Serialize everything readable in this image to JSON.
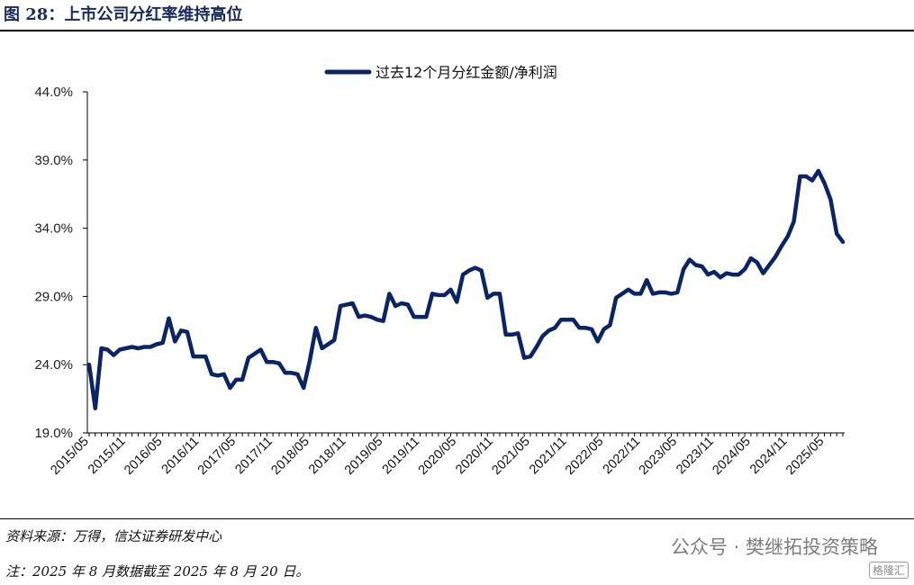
{
  "figure": {
    "title": "图 28：上市公司分红率维持高位",
    "source": "资料来源：万得，信达证券研发中心",
    "note": "注：2025 年 8 月数据截至 2025 年 8 月 20 日。",
    "watermark": "公众号 · 樊继拓投资策略",
    "watermark_logo": "格隆汇"
  },
  "colors": {
    "line": "#0c2461",
    "axis": "#000000"
  },
  "chart_data": {
    "type": "line",
    "title": "",
    "xlabel": "",
    "ylabel": "",
    "ylim": [
      19.0,
      44.0
    ],
    "y_ticks": [
      "19.0%",
      "24.0%",
      "29.0%",
      "34.0%",
      "39.0%",
      "44.0%"
    ],
    "y_tick_values": [
      19,
      24,
      29,
      34,
      39,
      44
    ],
    "x_ticks": [
      "2015/05",
      "2015/11",
      "2016/05",
      "2016/11",
      "2017/05",
      "2017/11",
      "2018/05",
      "2018/11",
      "2019/05",
      "2019/11",
      "2020/05",
      "2020/11",
      "2021/05",
      "2021/11",
      "2022/05",
      "2022/11",
      "2023/05",
      "2023/11",
      "2024/05",
      "2024/11",
      "2025/05"
    ],
    "legend_position": "top-center",
    "grid": false,
    "series": [
      {
        "name": "过去12个月分红金额/净利润",
        "x": [
          "2015/05",
          "2015/06",
          "2015/07",
          "2015/08",
          "2015/09",
          "2015/10",
          "2015/11",
          "2015/12",
          "2016/01",
          "2016/02",
          "2016/03",
          "2016/04",
          "2016/05",
          "2016/06",
          "2016/07",
          "2016/08",
          "2016/09",
          "2016/10",
          "2016/11",
          "2016/12",
          "2017/01",
          "2017/02",
          "2017/03",
          "2017/04",
          "2017/05",
          "2017/06",
          "2017/07",
          "2017/08",
          "2017/09",
          "2017/10",
          "2017/11",
          "2017/12",
          "2018/01",
          "2018/02",
          "2018/03",
          "2018/04",
          "2018/05",
          "2018/06",
          "2018/07",
          "2018/08",
          "2018/09",
          "2018/10",
          "2018/11",
          "2018/12",
          "2019/01",
          "2019/02",
          "2019/03",
          "2019/04",
          "2019/05",
          "2019/06",
          "2019/07",
          "2019/08",
          "2019/09",
          "2019/10",
          "2019/11",
          "2019/12",
          "2020/01",
          "2020/02",
          "2020/03",
          "2020/04",
          "2020/05",
          "2020/06",
          "2020/07",
          "2020/08",
          "2020/09",
          "2020/10",
          "2020/11",
          "2020/12",
          "2021/01",
          "2021/02",
          "2021/03",
          "2021/04",
          "2021/05",
          "2021/06",
          "2021/07",
          "2021/08",
          "2021/09",
          "2021/10",
          "2021/11",
          "2021/12",
          "2022/01",
          "2022/02",
          "2022/03",
          "2022/04",
          "2022/05",
          "2022/06",
          "2022/07",
          "2022/08",
          "2022/09",
          "2022/10",
          "2022/11",
          "2022/12",
          "2023/01",
          "2023/02",
          "2023/03",
          "2023/04",
          "2023/05",
          "2023/06",
          "2023/07",
          "2023/08",
          "2023/09",
          "2023/10",
          "2023/11",
          "2023/12",
          "2024/01",
          "2024/02",
          "2024/03",
          "2024/04",
          "2024/05",
          "2024/06",
          "2024/07",
          "2024/08",
          "2024/09",
          "2024/10",
          "2024/11",
          "2024/12",
          "2025/01",
          "2025/02",
          "2025/03",
          "2025/04",
          "2025/05",
          "2025/06",
          "2025/07",
          "2025/08"
        ],
        "values": [
          24.0,
          20.8,
          25.2,
          25.1,
          24.7,
          25.1,
          25.2,
          25.3,
          25.2,
          25.3,
          25.3,
          25.5,
          25.6,
          27.4,
          25.7,
          26.5,
          26.4,
          24.6,
          24.6,
          24.6,
          23.3,
          23.2,
          23.3,
          22.3,
          22.9,
          22.9,
          24.5,
          24.8,
          25.1,
          24.2,
          24.2,
          24.1,
          23.4,
          23.4,
          23.3,
          22.3,
          24.3,
          26.7,
          25.2,
          25.5,
          25.8,
          28.3,
          28.4,
          28.5,
          27.5,
          27.6,
          27.5,
          27.3,
          27.2,
          29.2,
          28.3,
          28.5,
          28.4,
          27.5,
          27.5,
          27.5,
          29.2,
          29.1,
          29.1,
          29.5,
          28.6,
          30.6,
          30.9,
          31.1,
          30.9,
          28.9,
          29.2,
          29.2,
          26.2,
          26.2,
          26.3,
          24.5,
          24.6,
          25.3,
          26.1,
          26.5,
          26.7,
          27.3,
          27.3,
          27.3,
          26.7,
          26.7,
          26.6,
          25.7,
          26.6,
          26.9,
          28.9,
          29.2,
          29.5,
          29.2,
          29.2,
          30.2,
          29.2,
          29.3,
          29.3,
          29.2,
          29.3,
          31.0,
          31.7,
          31.3,
          31.2,
          30.6,
          30.8,
          30.4,
          30.7,
          30.6,
          30.6,
          31.0,
          31.8,
          31.5,
          30.7,
          31.3,
          31.9,
          32.7,
          33.4,
          34.5,
          37.8,
          37.8,
          37.5,
          38.2,
          37.3,
          36.1,
          33.6,
          33.0
        ]
      }
    ]
  }
}
